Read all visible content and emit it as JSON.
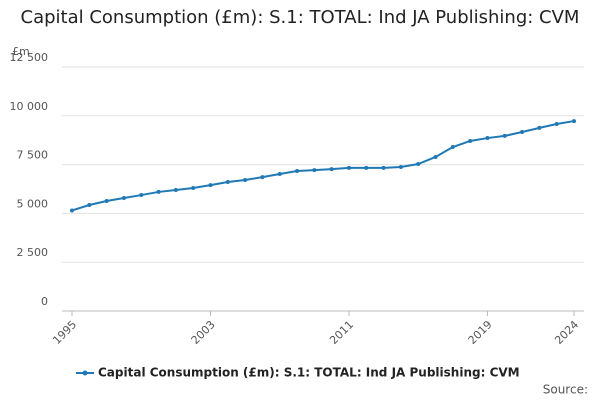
{
  "chart_data": {
    "type": "line",
    "title": "Capital Consumption (£m): S.1: TOTAL: Ind JA Publishing: CVM",
    "y_label": "£m",
    "source": "Source:",
    "x": [
      1995,
      1996,
      1997,
      1998,
      1999,
      2000,
      2001,
      2002,
      2003,
      2004,
      2005,
      2006,
      2007,
      2008,
      2009,
      2010,
      2011,
      2012,
      2013,
      2014,
      2015,
      2016,
      2017,
      2018,
      2019,
      2020,
      2021,
      2022,
      2023,
      2024
    ],
    "series": [
      {
        "name": "Capital Consumption (£m): S.1: TOTAL: Ind JA Publishing: CVM",
        "color": "#2079b4",
        "values": [
          5150,
          5430,
          5635,
          5790,
          5940,
          6100,
          6200,
          6300,
          6450,
          6610,
          6710,
          6860,
          7020,
          7170,
          7220,
          7270,
          7330,
          7330,
          7330,
          7380,
          7530,
          7890,
          8400,
          8710,
          8860,
          8970,
          9170,
          9380,
          9580,
          9730
        ]
      }
    ],
    "xlim": [
      1995,
      2024
    ],
    "xticks": [
      1995,
      2003,
      2011,
      2019,
      2024
    ],
    "ylim": [
      0,
      12500
    ],
    "yticks": [
      0,
      {
        "value": 2500,
        "label": "2 500"
      },
      {
        "value": 5000,
        "label": "5 000"
      },
      {
        "value": 7500,
        "label": "7 500"
      },
      {
        "value": 10000,
        "label": "10 000"
      },
      {
        "value": 12500,
        "label": "12 500"
      }
    ],
    "grid": true
  }
}
